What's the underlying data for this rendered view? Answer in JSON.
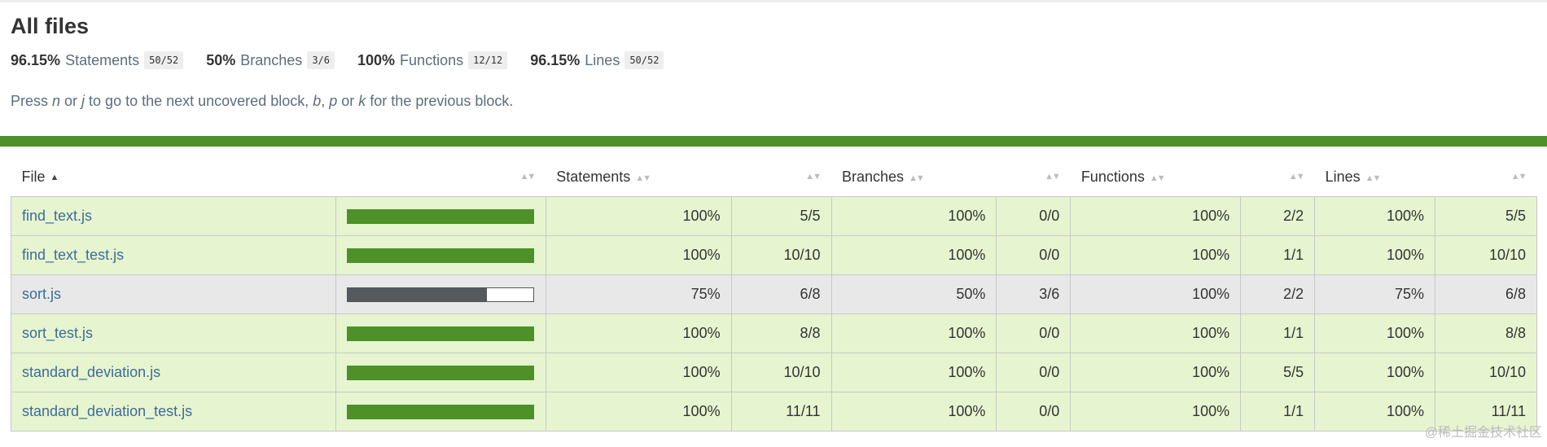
{
  "title": "All files",
  "summary": [
    {
      "pct": "96.15%",
      "label": "Statements",
      "fraction": "50/52"
    },
    {
      "pct": "50%",
      "label": "Branches",
      "fraction": "3/6"
    },
    {
      "pct": "100%",
      "label": "Functions",
      "fraction": "12/12"
    },
    {
      "pct": "96.15%",
      "label": "Lines",
      "fraction": "50/52"
    }
  ],
  "hint": {
    "p1": "Press ",
    "k1": "n",
    "p2": " or ",
    "k2": "j",
    "p3": " to go to the next uncovered block, ",
    "k3": "b",
    "p4": ", ",
    "k4": "p",
    "p5": " or ",
    "k5": "k",
    "p6": " for the previous block."
  },
  "colors": {
    "high": "#4d9128",
    "high_bg": "#e6f5d0",
    "medium_bg": "#e8e8e8",
    "link": "#3d6b99"
  },
  "icons": {
    "sort_asc": "▲",
    "sortable": "▲▼"
  },
  "table": {
    "headers": {
      "file": "File",
      "statements": "Statements",
      "branches": "Branches",
      "functions": "Functions",
      "lines": "Lines"
    },
    "rows": [
      {
        "file": "find_text.js",
        "level": "high",
        "coverage": 1.0,
        "stmt_pct": "100%",
        "stmt": "5/5",
        "br_pct": "100%",
        "br": "0/0",
        "fn_pct": "100%",
        "fn": "2/2",
        "ln_pct": "100%",
        "ln": "5/5"
      },
      {
        "file": "find_text_test.js",
        "level": "high",
        "coverage": 1.0,
        "stmt_pct": "100%",
        "stmt": "10/10",
        "br_pct": "100%",
        "br": "0/0",
        "fn_pct": "100%",
        "fn": "1/1",
        "ln_pct": "100%",
        "ln": "10/10"
      },
      {
        "file": "sort.js",
        "level": "medium",
        "coverage": 0.75,
        "stmt_pct": "75%",
        "stmt": "6/8",
        "br_pct": "50%",
        "br": "3/6",
        "fn_pct": "100%",
        "fn": "2/2",
        "ln_pct": "75%",
        "ln": "6/8"
      },
      {
        "file": "sort_test.js",
        "level": "high",
        "coverage": 1.0,
        "stmt_pct": "100%",
        "stmt": "8/8",
        "br_pct": "100%",
        "br": "0/0",
        "fn_pct": "100%",
        "fn": "1/1",
        "ln_pct": "100%",
        "ln": "8/8"
      },
      {
        "file": "standard_deviation.js",
        "level": "high",
        "coverage": 1.0,
        "stmt_pct": "100%",
        "stmt": "10/10",
        "br_pct": "100%",
        "br": "0/0",
        "fn_pct": "100%",
        "fn": "5/5",
        "ln_pct": "100%",
        "ln": "10/10"
      },
      {
        "file": "standard_deviation_test.js",
        "level": "high",
        "coverage": 1.0,
        "stmt_pct": "100%",
        "stmt": "11/11",
        "br_pct": "100%",
        "br": "0/0",
        "fn_pct": "100%",
        "fn": "1/1",
        "ln_pct": "100%",
        "ln": "11/11"
      }
    ]
  },
  "watermark": "@稀土掘金技术社区"
}
